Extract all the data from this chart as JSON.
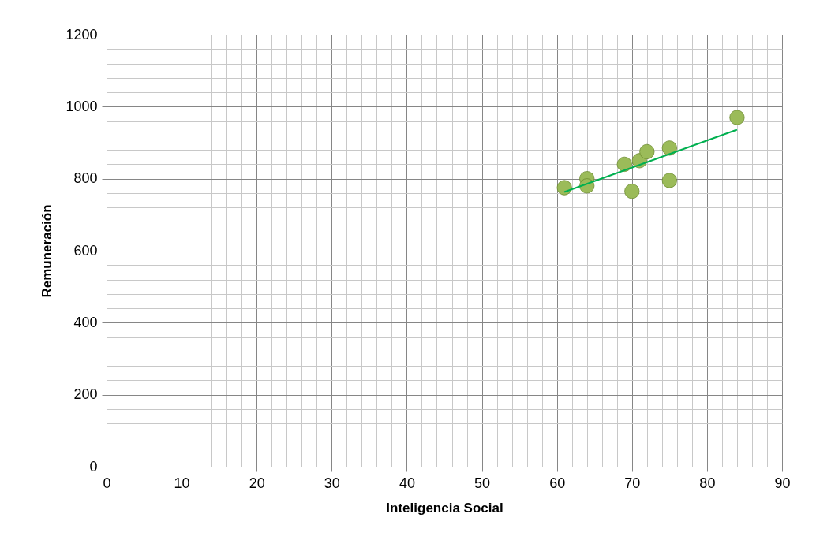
{
  "chart_data": {
    "type": "scatter",
    "xlabel": "Inteligencia Social",
    "ylabel": "Remuneración",
    "x": [
      61,
      64,
      64,
      69,
      70,
      71,
      72,
      75,
      75,
      84
    ],
    "series": [
      {
        "type": "scatter",
        "color": "#9bbb59",
        "values": [
          775,
          800,
          780,
          840,
          765,
          850,
          875,
          885,
          795,
          970
        ]
      },
      {
        "type": "line",
        "marker": "none",
        "color": "#00b050",
        "x": [
          61,
          84
        ],
        "values": [
          763,
          936
        ]
      }
    ],
    "xlim": [
      0,
      90
    ],
    "xticks": [
      0,
      10,
      20,
      30,
      40,
      50,
      60,
      70,
      80,
      90
    ],
    "ylim": [
      0,
      1200
    ],
    "yticks": [
      0,
      200,
      400,
      600,
      800,
      1000,
      1200
    ],
    "grid": true,
    "marker": "circle"
  }
}
